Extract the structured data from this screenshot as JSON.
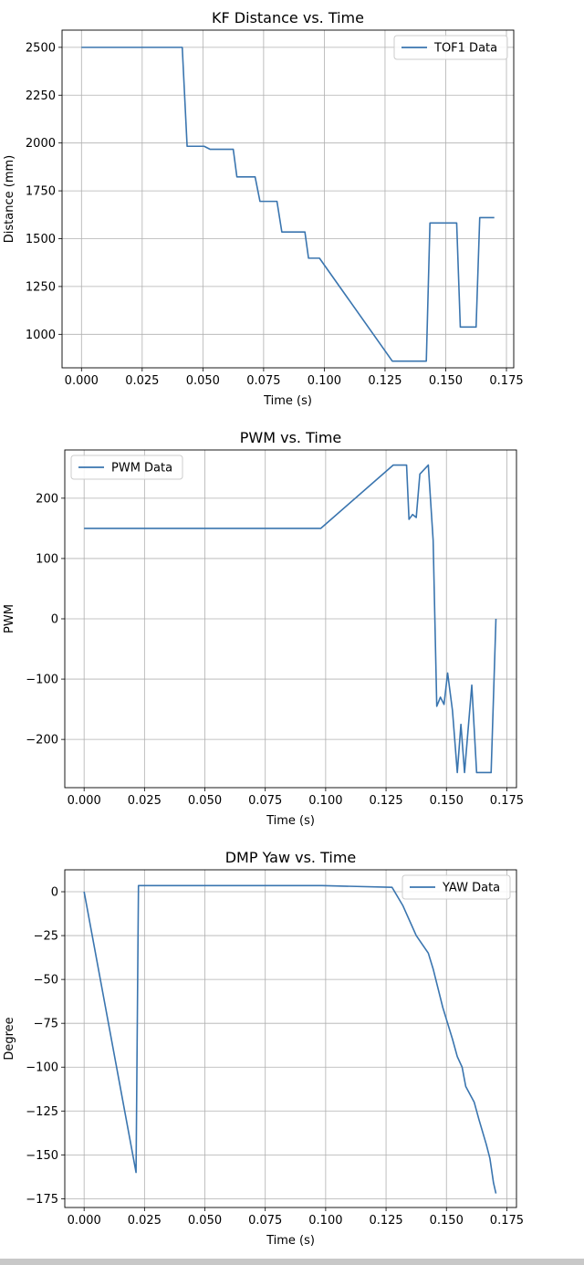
{
  "chart_data": [
    {
      "type": "line",
      "title": "KF Distance vs. Time",
      "xlabel": "Time (s)",
      "ylabel": "Distance (mm)",
      "xlim": [
        -0.008,
        0.178
      ],
      "ylim": [
        825,
        2590
      ],
      "xticks": [
        0.0,
        0.025,
        0.05,
        0.075,
        0.1,
        0.125,
        0.15,
        0.175
      ],
      "xtick_labels": [
        "0.000",
        "0.025",
        "0.050",
        "0.075",
        "0.100",
        "0.125",
        "0.150",
        "0.175"
      ],
      "yticks": [
        1000,
        1250,
        1500,
        1750,
        2000,
        2250,
        2500
      ],
      "ytick_labels": [
        "1000",
        "1250",
        "1500",
        "1750",
        "2000",
        "2250",
        "2500"
      ],
      "grid": true,
      "legend_position": "top-right",
      "color": "#3a75af",
      "series": [
        {
          "name": "TOF1 Data",
          "x": [
            0.0,
            0.0415,
            0.0435,
            0.0505,
            0.053,
            0.0625,
            0.064,
            0.0715,
            0.0735,
            0.0805,
            0.0825,
            0.092,
            0.0935,
            0.098,
            0.128,
            0.142,
            0.1435,
            0.1545,
            0.156,
            0.1625,
            0.164,
            0.17
          ],
          "y": [
            2500,
            2500,
            1983,
            1983,
            1967,
            1967,
            1823,
            1823,
            1695,
            1695,
            1535,
            1535,
            1398,
            1398,
            860,
            860,
            1582,
            1582,
            1038,
            1038,
            1610,
            1610
          ]
        }
      ]
    },
    {
      "type": "line",
      "title": "PWM vs. Time",
      "xlabel": "Time (s)",
      "ylabel": "PWM",
      "xlim": [
        -0.008,
        0.179
      ],
      "ylim": [
        -280,
        280
      ],
      "xticks": [
        0.0,
        0.025,
        0.05,
        0.075,
        0.1,
        0.125,
        0.15,
        0.175
      ],
      "xtick_labels": [
        "0.000",
        "0.025",
        "0.050",
        "0.075",
        "0.100",
        "0.125",
        "0.150",
        "0.175"
      ],
      "yticks": [
        -200,
        -100,
        0,
        100,
        200
      ],
      "ytick_labels": [
        "−200",
        "−100",
        "0",
        "100",
        "200"
      ],
      "grid": true,
      "legend_position": "top-left",
      "color": "#3a75af",
      "series": [
        {
          "name": "PWM Data",
          "x": [
            0.0,
            0.098,
            0.128,
            0.1335,
            0.1345,
            0.136,
            0.1375,
            0.139,
            0.1425,
            0.1445,
            0.146,
            0.1475,
            0.149,
            0.1505,
            0.1525,
            0.1545,
            0.156,
            0.1575,
            0.1605,
            0.1625,
            0.1685,
            0.1705
          ],
          "y": [
            150,
            150,
            255,
            255,
            165,
            173,
            168,
            240,
            255,
            130,
            -145,
            -130,
            -142,
            -90,
            -152,
            -255,
            -175,
            -255,
            -110,
            -255,
            -255,
            0
          ]
        }
      ]
    },
    {
      "type": "line",
      "title": "DMP Yaw vs. Time",
      "xlabel": "Time (s)",
      "ylabel": "Degree",
      "xlim": [
        -0.008,
        0.179
      ],
      "ylim": [
        -180,
        12.5
      ],
      "xticks": [
        0.0,
        0.025,
        0.05,
        0.075,
        0.1,
        0.125,
        0.15,
        0.175
      ],
      "xtick_labels": [
        "0.000",
        "0.025",
        "0.050",
        "0.075",
        "0.100",
        "0.125",
        "0.150",
        "0.175"
      ],
      "yticks": [
        -175,
        -150,
        -125,
        -100,
        -75,
        -50,
        -25,
        0
      ],
      "ytick_labels": [
        "−175",
        "−150",
        "−125",
        "−100",
        "−75",
        "−50",
        "−25",
        "0"
      ],
      "grid": true,
      "legend_position": "top-right",
      "color": "#3a75af",
      "series": [
        {
          "name": "YAW Data",
          "x": [
            0.0,
            0.0215,
            0.0225,
            0.0985,
            0.1275,
            0.132,
            0.1375,
            0.14,
            0.1425,
            0.1445,
            0.1465,
            0.1485,
            0.1505,
            0.1525,
            0.1545,
            0.1565,
            0.158,
            0.1615,
            0.1635,
            0.1665,
            0.168,
            0.1695,
            0.1705
          ],
          "y": [
            0,
            -160,
            3.5,
            3.5,
            2.5,
            -8,
            -25,
            -30,
            -35,
            -44,
            -55,
            -66,
            -75,
            -84,
            -94,
            -100,
            -111,
            -120,
            -130,
            -144,
            -152,
            -166,
            -172
          ]
        }
      ]
    }
  ]
}
